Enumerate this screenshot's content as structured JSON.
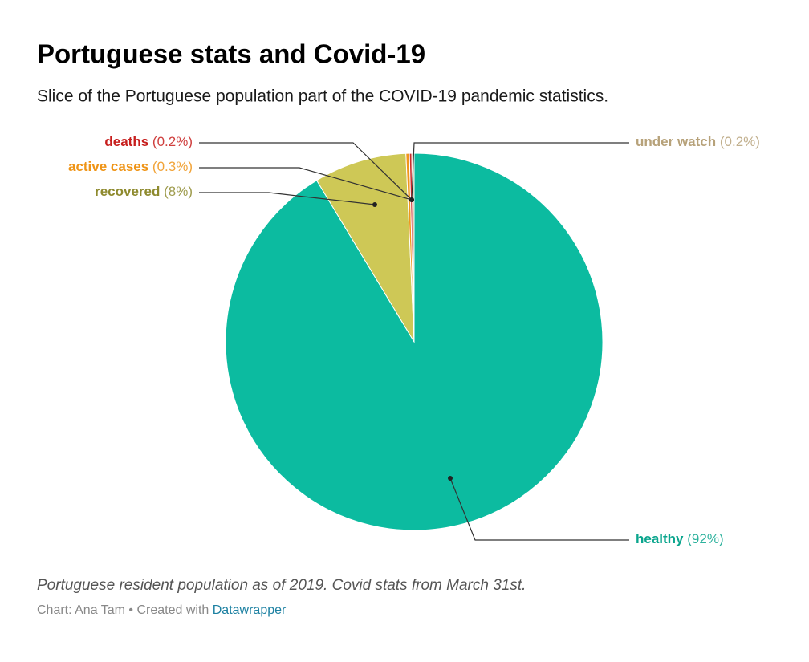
{
  "chart_data": {
    "type": "pie",
    "title": "Portuguese stats and Covid-19",
    "subtitle": "Slice of the Portuguese population part of the COVID-19 pandemic statistics.",
    "categories": [
      "healthy",
      "recovered",
      "active cases",
      "deaths",
      "under watch"
    ],
    "values": [
      92,
      8,
      0.3,
      0.2,
      0.2
    ],
    "value_labels": [
      "(92%)",
      "(8%)",
      "(0.3%)",
      "(0.2%)",
      "(0.2%)"
    ],
    "colors": [
      "#0cbba0",
      "#cec856",
      "#f0961c",
      "#c92a2a",
      "#c9b48a"
    ],
    "label_colors": [
      "#0aa58d",
      "#8e8a2e",
      "#ef9416",
      "#c71e1d",
      "#b7a27a"
    ],
    "notes": "Portuguese resident population as of 2019. Covid stats from March 31st.",
    "byline": "Chart: Ana Tam • Created with",
    "credit": "Datawrapper"
  }
}
